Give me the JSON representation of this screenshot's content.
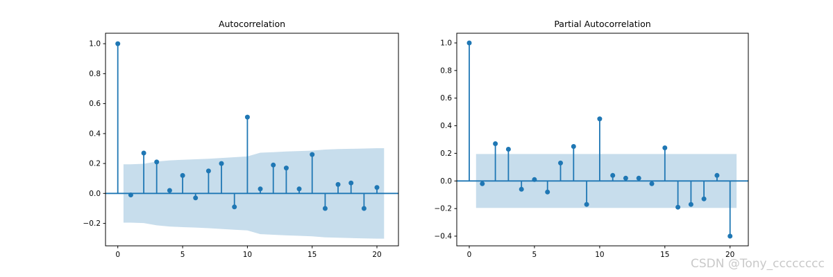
{
  "figure": {
    "background": "#ffffff",
    "accent_color": "#1f77b4",
    "band_color": "rgba(31,119,180,0.25)",
    "frame_color": "#000000",
    "watermark": {
      "text": "CSDN @Tony_cccccccc",
      "color": "#c9c9c9"
    }
  },
  "chart_data": [
    {
      "type": "stem",
      "title": "Autocorrelation",
      "xlabel": "",
      "ylabel": "",
      "x": [
        0,
        1,
        2,
        3,
        4,
        5,
        6,
        7,
        8,
        9,
        10,
        11,
        12,
        13,
        14,
        15,
        16,
        17,
        18,
        19,
        20
      ],
      "values": [
        1.0,
        -0.01,
        0.27,
        0.21,
        0.02,
        0.12,
        -0.03,
        0.15,
        0.2,
        -0.09,
        0.51,
        0.03,
        0.19,
        0.17,
        0.03,
        0.26,
        -0.1,
        0.06,
        0.07,
        -0.1,
        0.04
      ],
      "ci_upper": [
        0.195,
        0.198,
        0.213,
        0.221,
        0.225,
        0.228,
        0.232,
        0.237,
        0.242,
        0.247,
        0.272,
        0.276,
        0.28,
        0.283,
        0.286,
        0.293,
        0.296,
        0.298,
        0.3,
        0.302
      ],
      "ci_symmetric": true,
      "band_x_start": 0.44,
      "band_x_end": 20.55,
      "xticks": [
        0,
        5,
        10,
        15,
        20
      ],
      "yticks": [
        1.0,
        0.8,
        0.6,
        0.4,
        0.2,
        0.0,
        -0.2
      ],
      "xlim": [
        -0.95,
        21.66
      ],
      "ylim": [
        -0.35,
        1.07
      ],
      "grid": false,
      "legend": "none"
    },
    {
      "type": "stem",
      "title": "Partial Autocorrelation",
      "xlabel": "",
      "ylabel": "",
      "x": [
        0,
        1,
        2,
        3,
        4,
        5,
        6,
        7,
        8,
        9,
        10,
        11,
        12,
        13,
        14,
        15,
        16,
        17,
        18,
        19,
        20
      ],
      "values": [
        1.0,
        -0.02,
        0.27,
        0.23,
        -0.06,
        0.01,
        -0.08,
        0.13,
        0.25,
        -0.17,
        0.45,
        0.04,
        0.02,
        0.02,
        -0.02,
        0.24,
        -0.19,
        -0.17,
        -0.13,
        0.04,
        -0.4
      ],
      "ci_upper": [
        0.195,
        0.195,
        0.195,
        0.195,
        0.195,
        0.195,
        0.195,
        0.195,
        0.195,
        0.195,
        0.195,
        0.195,
        0.195,
        0.195,
        0.195,
        0.195,
        0.195,
        0.195,
        0.195,
        0.195
      ],
      "ci_symmetric": true,
      "band_x_start": 0.52,
      "band_x_end": 20.5,
      "xticks": [
        0,
        5,
        10,
        15,
        20
      ],
      "yticks": [
        1.0,
        0.8,
        0.6,
        0.4,
        0.2,
        0.0,
        -0.2,
        -0.4
      ],
      "xlim": [
        -0.96,
        21.4
      ],
      "ylim": [
        -0.47,
        1.07
      ],
      "grid": false,
      "legend": "none"
    }
  ]
}
